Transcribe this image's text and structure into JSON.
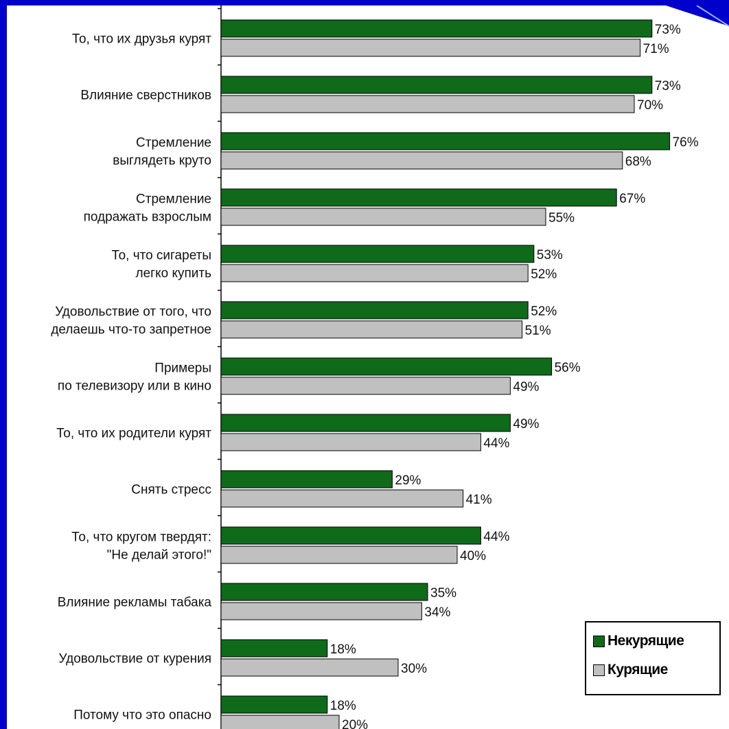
{
  "colors": {
    "background": "#0000cc",
    "nonsmokers": "#0f6a1a",
    "smokers": "#c0c0c0"
  },
  "legend": [
    {
      "label": "Некурящие",
      "color": "#0f6a1a"
    },
    {
      "label": "Курящие",
      "color": "#c0c0c0"
    }
  ],
  "chart_data": {
    "type": "bar",
    "orientation": "horizontal",
    "title": "",
    "xlabel": "",
    "ylabel": "",
    "xlim": [
      0,
      100
    ],
    "grid": false,
    "legend_position": "bottom-right",
    "categories": [
      [
        "То, что их друзья курят"
      ],
      [
        "Влияние сверстников"
      ],
      [
        "Стремление",
        "выглядеть круто"
      ],
      [
        "Стремление",
        "подражать взрослым"
      ],
      [
        "То, что сигареты",
        "легко купить"
      ],
      [
        "Удовольствие от того, что",
        "делаешь что-то запретное"
      ],
      [
        "Примеры",
        "по телевизору или в кино"
      ],
      [
        "То, что их родители курят"
      ],
      [
        "Снять стресс"
      ],
      [
        "То, что кругом твердят:",
        "\"Не делай этого!\""
      ],
      [
        "Влияние рекламы табака"
      ],
      [
        "Удовольствие от курения"
      ],
      [
        "Потому что это опасно"
      ]
    ],
    "series": [
      {
        "name": "Некурящие",
        "color": "#0f6a1a",
        "values": [
          73,
          73,
          76,
          67,
          53,
          52,
          56,
          49,
          29,
          44,
          35,
          18,
          18
        ]
      },
      {
        "name": "Курящие",
        "color": "#c0c0c0",
        "values": [
          71,
          70,
          68,
          55,
          52,
          51,
          49,
          44,
          41,
          40,
          34,
          30,
          20
        ]
      }
    ],
    "value_suffix": "%"
  }
}
